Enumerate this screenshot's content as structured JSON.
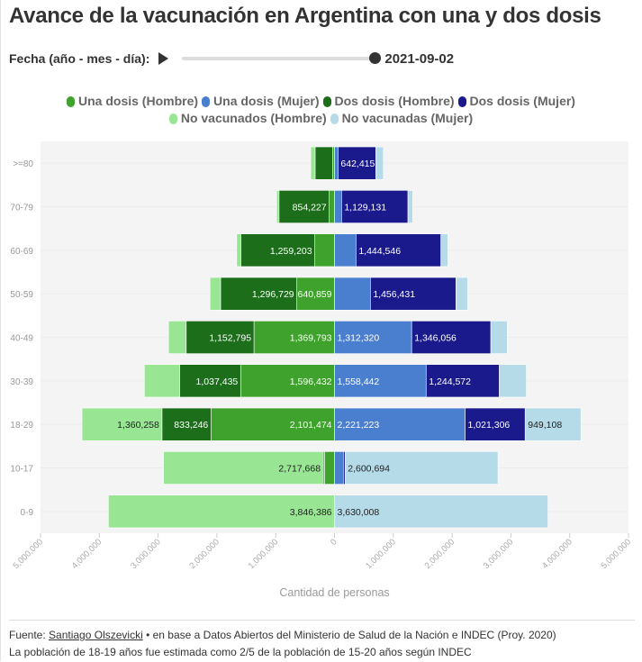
{
  "title": "Avance de la vacunación en Argentina con una y dos dosis",
  "controls": {
    "date_label": "Fecha (año - mes - día):",
    "play_icon": "play-icon",
    "date_value": "2021-09-02",
    "slider_progress": 1.0
  },
  "footer": {
    "source_prefix": "Fuente: ",
    "source_link": "Santiago Olszevicki",
    "source_suffix": " • en base a Datos Abiertos del Ministerio de Salud de la Nación e INDEC (Proy. 2020)",
    "note": "La población de 18-19 años fue estimada como 2/5 de la población de 15-20 años según INDEC"
  },
  "chart_data": {
    "type": "bar",
    "orientation": "horizontal-stacked-diverging",
    "title": "Avance de la vacunación en Argentina con una y dos dosis",
    "xlabel": "Cantidad de personas",
    "ylabel": "",
    "xlim": [
      -5000000,
      5000000
    ],
    "x_ticks": [
      -5000000,
      -4000000,
      -3000000,
      -2000000,
      -1000000,
      0,
      1000000,
      2000000,
      3000000,
      4000000,
      5000000
    ],
    "x_tick_labels": [
      "5,000,000",
      "4,000,000",
      "3,000,000",
      "2,000,000",
      "1,000,000",
      "0",
      "1,000,000",
      "2,000,000",
      "3,000,000",
      "4,000,000",
      "5,000,000"
    ],
    "categories": [
      ">=80",
      "70-79",
      "60-69",
      "50-59",
      "40-49",
      "30-39",
      "18-29",
      "10-17",
      "0-9"
    ],
    "grid": true,
    "legend_position": "top-center",
    "series": [
      {
        "name": "Una dosis (Hombre)",
        "side": "left",
        "color": "#3fa22c",
        "values": [
          30000,
          90000,
          335000,
          640859,
          1369793,
          1596432,
          2101474,
          170000,
          0
        ],
        "labels": [
          null,
          null,
          null,
          "640,859",
          "1,369,793",
          "1,596,432",
          "2,101,474",
          null,
          null
        ]
      },
      {
        "name": "Dos dosis (Hombre)",
        "side": "left",
        "color": "#1c6e1a",
        "values": [
          300000,
          854227,
          1259203,
          1296729,
          1152795,
          1037435,
          833246,
          20000,
          0
        ],
        "labels": [
          null,
          "854,227",
          "1,259,203",
          "1,296,729",
          "1,152,795",
          "1,037,435",
          "833,246",
          null,
          null
        ]
      },
      {
        "name": "No vacunados (Hombre)",
        "side": "left",
        "color": "#98e594",
        "values": [
          75000,
          40000,
          70000,
          180000,
          300000,
          600000,
          1360258,
          2717668,
          3846386
        ],
        "labels": [
          null,
          null,
          null,
          null,
          null,
          null,
          "1,360,258",
          "2,717,668",
          "3,846,386"
        ]
      },
      {
        "name": "Una dosis (Mujer)",
        "side": "right",
        "color": "#4a7fcf",
        "values": [
          60000,
          120000,
          365000,
          610000,
          1312320,
          1558442,
          2221223,
          150000,
          0
        ],
        "labels": [
          null,
          null,
          null,
          null,
          "1,312,320",
          "1,558,442",
          "2,221,223",
          null,
          null
        ]
      },
      {
        "name": "Dos dosis (Mujer)",
        "side": "right",
        "color": "#1a1a8c",
        "values": [
          642415,
          1129131,
          1444546,
          1456431,
          1346056,
          1244572,
          1021306,
          30000,
          0
        ],
        "labels": [
          "642,415",
          "1,129,131",
          "1,444,546",
          "1,456,431",
          "1,346,056",
          "1,244,572",
          "1,021,306",
          null,
          null
        ]
      },
      {
        "name": "No vacunadas (Mujer)",
        "side": "right",
        "color": "#b5dbe9",
        "values": [
          130000,
          80000,
          120000,
          200000,
          280000,
          460000,
          949108,
          2600694,
          3630008
        ],
        "labels": [
          null,
          null,
          null,
          null,
          null,
          null,
          "949,108",
          "2,600,694",
          "3,630,008"
        ]
      }
    ]
  }
}
